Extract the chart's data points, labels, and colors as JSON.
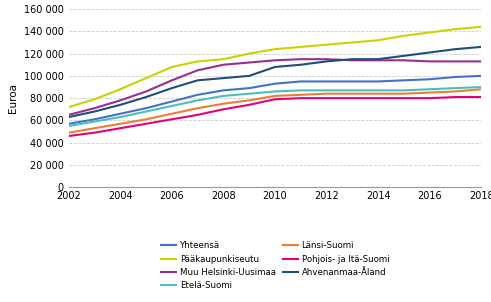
{
  "years": [
    2002,
    2003,
    2004,
    2005,
    2006,
    2007,
    2008,
    2009,
    2010,
    2011,
    2012,
    2013,
    2014,
    2015,
    2016,
    2017,
    2018
  ],
  "series": {
    "Yhteensä": [
      57000,
      61000,
      66000,
      71000,
      77000,
      83000,
      87000,
      89000,
      93000,
      95000,
      95000,
      95000,
      95000,
      96000,
      97000,
      99000,
      100000
    ],
    "Pääkaupunkiseutu": [
      72000,
      79000,
      88000,
      98000,
      108000,
      113000,
      115000,
      120000,
      124000,
      126000,
      128000,
      130000,
      132000,
      136000,
      139000,
      142000,
      144000
    ],
    "Muu Helsinki-Uusimaa": [
      65000,
      71000,
      78000,
      86000,
      96000,
      105000,
      110000,
      112000,
      114000,
      115000,
      115000,
      114000,
      114000,
      114000,
      113000,
      113000,
      113000
    ],
    "Etelä-Suomi": [
      55000,
      59000,
      63000,
      68000,
      73000,
      78000,
      82000,
      84000,
      86000,
      87000,
      87000,
      87000,
      87000,
      87000,
      88000,
      89000,
      90000
    ],
    "Länsi-Suomi": [
      49000,
      53000,
      57000,
      61000,
      66000,
      71000,
      75000,
      78000,
      82000,
      83000,
      84000,
      84000,
      84000,
      84000,
      85000,
      86000,
      88000
    ],
    "Pohjois- ja Itä-Suomi": [
      46000,
      49000,
      53000,
      57000,
      61000,
      65000,
      70000,
      74000,
      79000,
      80000,
      80000,
      80000,
      80000,
      80000,
      80000,
      81000,
      81000
    ],
    "Ahvenanmaa-Åland": [
      63000,
      68000,
      74000,
      81000,
      89000,
      96000,
      98000,
      100000,
      108000,
      110000,
      113000,
      115000,
      115000,
      118000,
      121000,
      124000,
      126000
    ]
  },
  "colors": {
    "Yhteensä": "#4472C4",
    "Pääkaupunkiseutu": "#C8D400",
    "Muu Helsinki-Uusimaa": "#9B2D8E",
    "Etelä-Suomi": "#4BBFBF",
    "Länsi-Suomi": "#ED7D31",
    "Pohjois- ja Itä-Suomi": "#E3007D",
    "Ahvenanmaa-Åland": "#1F4E79"
  },
  "ylabel": "Euroa",
  "ylim": [
    0,
    160000
  ],
  "yticks": [
    0,
    20000,
    40000,
    60000,
    80000,
    100000,
    120000,
    140000,
    160000
  ],
  "xticks": [
    2002,
    2004,
    2006,
    2008,
    2010,
    2012,
    2014,
    2016,
    2018
  ],
  "legend_col1": [
    "Yhteensä",
    "Muu Helsinki-Uusimaa",
    "Länsi-Suomi",
    "Ahvenanmaa-Åland"
  ],
  "legend_col2": [
    "Pääkaupunkiseutu",
    "Etelä-Suomi",
    "Pohjois- ja Itä-Suomi"
  ],
  "plot_order": [
    "Yhteensä",
    "Pääkaupunkiseutu",
    "Muu Helsinki-Uusimaa",
    "Etelä-Suomi",
    "Länsi-Suomi",
    "Pohjois- ja Itä-Suomi",
    "Ahvenanmaa-Åland"
  ],
  "line_width": 1.5
}
